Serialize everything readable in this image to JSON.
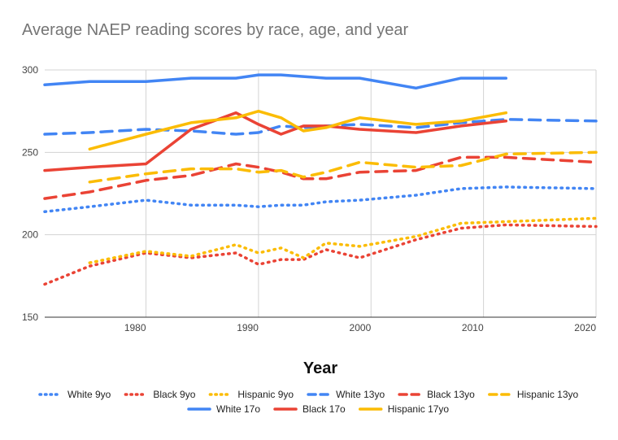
{
  "chart_data": {
    "type": "line",
    "title": "Average NAEP reading scores by race, age, and year",
    "xlabel": "Year",
    "ylabel": "",
    "xlim": [
      1971,
      2020
    ],
    "ylim": [
      150,
      300
    ],
    "xticks": [
      1980,
      1990,
      2000,
      2010,
      2020
    ],
    "yticks": [
      150,
      200,
      250,
      300
    ],
    "grid": "vertical",
    "legend_position": "bottom",
    "series": [
      {
        "name": "White 9yo",
        "color": "#4285F4",
        "dash": "dotted",
        "x": [
          1971,
          1975,
          1980,
          1984,
          1988,
          1990,
          1992,
          1994,
          1996,
          1999,
          2004,
          2008,
          2012,
          2020
        ],
        "y": [
          214,
          217,
          221,
          218,
          218,
          217,
          218,
          218,
          220,
          221,
          224,
          228,
          229,
          228
        ]
      },
      {
        "name": "Black 9yo",
        "color": "#EA4335",
        "dash": "dotted",
        "x": [
          1971,
          1975,
          1980,
          1984,
          1988,
          1990,
          1992,
          1994,
          1996,
          1999,
          2004,
          2008,
          2012,
          2020
        ],
        "y": [
          170,
          181,
          189,
          186,
          189,
          182,
          185,
          185,
          191,
          186,
          197,
          204,
          206,
          205
        ]
      },
      {
        "name": "Hispanic 9yo",
        "color": "#FBBC04",
        "dash": "dotted",
        "x": [
          1975,
          1980,
          1984,
          1988,
          1990,
          1992,
          1994,
          1996,
          1999,
          2004,
          2008,
          2012,
          2020
        ],
        "y": [
          183,
          190,
          187,
          194,
          189,
          192,
          186,
          195,
          193,
          199,
          207,
          208,
          210
        ]
      },
      {
        "name": "White 13yo",
        "color": "#4285F4",
        "dash": "dashed",
        "x": [
          1971,
          1975,
          1980,
          1984,
          1988,
          1990,
          1992,
          1994,
          1996,
          1999,
          2004,
          2008,
          2012,
          2020
        ],
        "y": [
          261,
          262,
          264,
          263,
          261,
          262,
          266,
          265,
          266,
          267,
          265,
          268,
          270,
          269
        ]
      },
      {
        "name": "Black 13yo",
        "color": "#EA4335",
        "dash": "dashed",
        "x": [
          1971,
          1975,
          1980,
          1984,
          1988,
          1990,
          1992,
          1994,
          1996,
          1999,
          2004,
          2008,
          2012,
          2020
        ],
        "y": [
          222,
          226,
          233,
          236,
          243,
          241,
          238,
          234,
          234,
          238,
          239,
          247,
          247,
          244
        ]
      },
      {
        "name": "Hispanic 13yo",
        "color": "#FBBC04",
        "dash": "dashed",
        "x": [
          1975,
          1980,
          1984,
          1988,
          1990,
          1992,
          1994,
          1996,
          1999,
          2004,
          2008,
          2012,
          2020
        ],
        "y": [
          232,
          237,
          240,
          240,
          238,
          239,
          235,
          238,
          244,
          241,
          242,
          249,
          250
        ]
      },
      {
        "name": "White 17o",
        "color": "#4285F4",
        "dash": "solid",
        "x": [
          1971,
          1975,
          1980,
          1984,
          1988,
          1990,
          1992,
          1994,
          1996,
          1999,
          2004,
          2008,
          2012
        ],
        "y": [
          291,
          293,
          293,
          295,
          295,
          297,
          297,
          296,
          295,
          295,
          289,
          295,
          295
        ]
      },
      {
        "name": "Black 17o",
        "color": "#EA4335",
        "dash": "solid",
        "x": [
          1971,
          1975,
          1980,
          1984,
          1988,
          1990,
          1992,
          1994,
          1996,
          1999,
          2004,
          2008,
          2012
        ],
        "y": [
          239,
          241,
          243,
          264,
          274,
          267,
          261,
          266,
          266,
          264,
          262,
          266,
          269
        ]
      },
      {
        "name": "Hispanic 17yo",
        "color": "#FBBC04",
        "dash": "solid",
        "x": [
          1975,
          1980,
          1984,
          1988,
          1990,
          1992,
          1994,
          1996,
          1999,
          2004,
          2008,
          2012
        ],
        "y": [
          252,
          261,
          268,
          271,
          275,
          271,
          263,
          265,
          271,
          267,
          269,
          274
        ]
      }
    ]
  }
}
